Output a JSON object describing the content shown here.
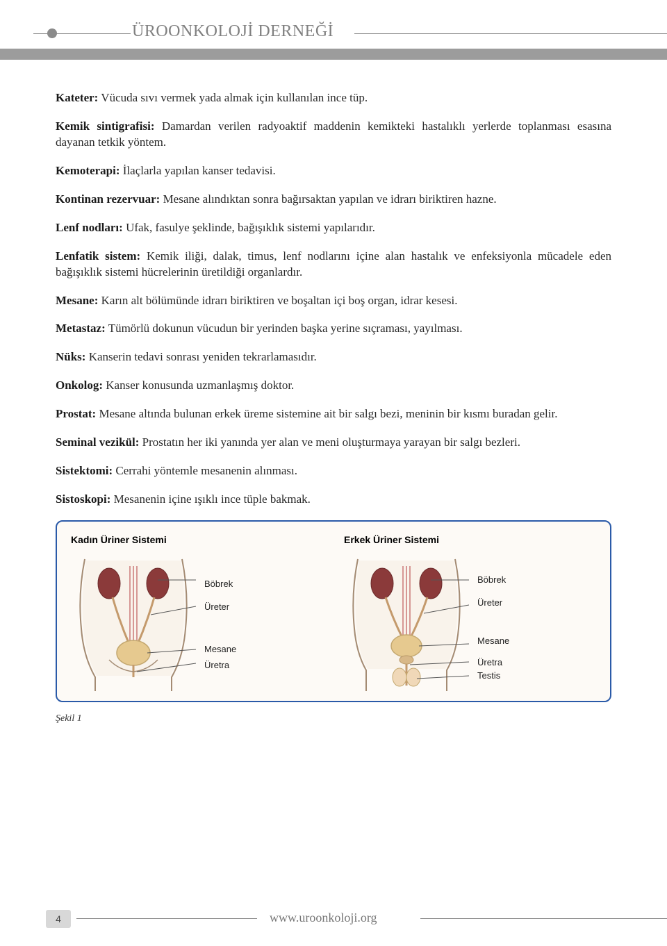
{
  "header": {
    "org_name": "ÜROONKOLOJİ DERNEĞİ"
  },
  "definitions": [
    {
      "term": "Kateter:",
      "text": " Vücuda sıvı vermek yada almak için kullanılan ince tüp."
    },
    {
      "term": "Kemik sintigrafisi:",
      "text": " Damardan verilen radyoaktif maddenin kemikteki hastalıklı yerlerde toplanması esasına dayanan tetkik yöntem."
    },
    {
      "term": "Kemoterapi:",
      "text": " İlaçlarla yapılan kanser tedavisi."
    },
    {
      "term": "Kontinan rezervuar:",
      "text": " Mesane alındıktan sonra bağırsaktan yapılan ve idrarı biriktiren hazne."
    },
    {
      "term": "Lenf nodları:",
      "text": " Ufak, fasulye şeklinde, bağışıklık sistemi yapılarıdır."
    },
    {
      "term": "Lenfatik sistem:",
      "text": " Kemik iliği, dalak, timus, lenf nodlarını içine alan hastalık ve enfeksiyonla mücadele eden bağışıklık sistemi hücrelerinin üretildiği organlardır."
    },
    {
      "term": "Mesane:",
      "text": " Karın alt bölümünde idrarı biriktiren ve boşaltan içi boş organ, idrar kesesi."
    },
    {
      "term": "Metastaz:",
      "text": " Tümörlü dokunun vücudun bir yerinden başka yerine sıçraması, yayılması."
    },
    {
      "term": "Nüks:",
      "text": " Kanserin tedavi sonrası yeniden tekrarlamasıdır."
    },
    {
      "term": "Onkolog:",
      "text": " Kanser konusunda uzmanlaşmış doktor."
    },
    {
      "term": "Prostat:",
      "text": " Mesane altında bulunan erkek üreme sistemine ait bir salgı bezi, meninin bir kısmı buradan gelir."
    },
    {
      "term": "Seminal vezikül:",
      "text": " Prostatın her iki yanında yer alan ve meni oluşturmaya yarayan bir salgı bezleri."
    },
    {
      "term": "Sistektomi:",
      "text": " Cerrahi yöntemle mesanenin alınması."
    },
    {
      "term": "Sistoskopi:",
      "text": " Mesanenin içine ışıklı ince tüple bakmak."
    }
  ],
  "diagram": {
    "border_color": "#2a5aa8",
    "background_color": "#fdfaf6",
    "female": {
      "title": "Kadın Üriner Sistemi",
      "labels": [
        "Böbrek",
        "Üreter",
        "Mesane",
        "Üretra"
      ],
      "label_offsets": [
        38,
        18,
        46,
        8
      ]
    },
    "male": {
      "title": "Erkek Üriner Sistemi",
      "labels": [
        "Böbrek",
        "Üreter",
        "Mesane",
        "Üretra",
        "Testis"
      ],
      "label_offsets": [
        32,
        18,
        40,
        16,
        4
      ]
    },
    "colors": {
      "body_outline": "#a48b73",
      "body_fill": "#f5ebe0",
      "kidney": "#8b3a3a",
      "bladder": "#e6c98f",
      "ureter": "#c49a6c",
      "vessel": "#c86f6f"
    }
  },
  "caption": "Şekil 1",
  "footer": {
    "page_number": "4",
    "url": "www.uroonkoloji.org"
  }
}
